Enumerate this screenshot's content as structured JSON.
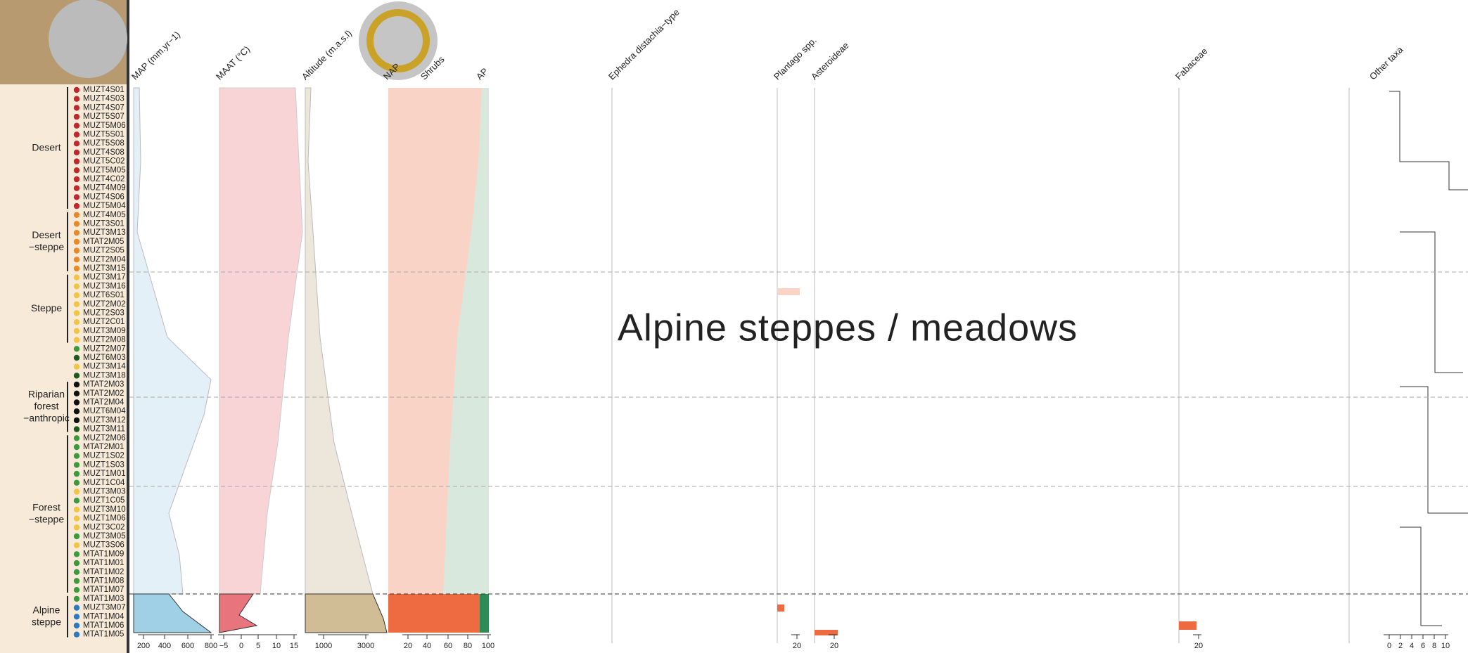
{
  "overlay_title": "Alpine steppes / meadows",
  "groups": [
    {
      "label": [
        "Desert"
      ]
    },
    {
      "label": [
        "Desert",
        "−steppe"
      ]
    },
    {
      "label": [
        "Steppe"
      ]
    },
    {
      "label": [
        "Riparian",
        "forest",
        "−anthropic"
      ]
    },
    {
      "label": [
        "Forest",
        "−steppe"
      ]
    },
    {
      "label": [
        "Alpine",
        "steppe"
      ]
    }
  ],
  "samples": [
    {
      "name": "MUZT4S01",
      "color": "#c0282d"
    },
    {
      "name": "MUZT4S03",
      "color": "#c0282d"
    },
    {
      "name": "MUZT4S07",
      "color": "#c0282d"
    },
    {
      "name": "MUZT5S07",
      "color": "#c0282d"
    },
    {
      "name": "MUZT5M06",
      "color": "#c0282d"
    },
    {
      "name": "MUZT5S01",
      "color": "#c0282d"
    },
    {
      "name": "MUZT5S08",
      "color": "#c0282d"
    },
    {
      "name": "MUZT4S08",
      "color": "#c0282d"
    },
    {
      "name": "MUZT5C02",
      "color": "#c0282d"
    },
    {
      "name": "MUZT5M05",
      "color": "#c0282d"
    },
    {
      "name": "MUZT4C02",
      "color": "#c0282d"
    },
    {
      "name": "MUZT4M09",
      "color": "#c0282d"
    },
    {
      "name": "MUZT4S06",
      "color": "#c0282d"
    },
    {
      "name": "MUZT5M04",
      "color": "#c0282d"
    },
    {
      "name": "MUZT4M05",
      "color": "#e8892a"
    },
    {
      "name": "MUZT3S01",
      "color": "#e8892a"
    },
    {
      "name": "MUZT3M13",
      "color": "#e8892a"
    },
    {
      "name": "MTAT2M05",
      "color": "#e8892a"
    },
    {
      "name": "MUZT2S05",
      "color": "#e8892a"
    },
    {
      "name": "MUZT2M04",
      "color": "#e8892a"
    },
    {
      "name": "MUZT3M15",
      "color": "#e8892a"
    },
    {
      "name": "MUZT3M17",
      "color": "#f2c443"
    },
    {
      "name": "MUZT3M16",
      "color": "#f2c443"
    },
    {
      "name": "MUZT6S01",
      "color": "#f2c443"
    },
    {
      "name": "MUZT2M02",
      "color": "#f2c443"
    },
    {
      "name": "MUZT2S03",
      "color": "#f2c443"
    },
    {
      "name": "MUZT2C01",
      "color": "#f2c443"
    },
    {
      "name": "MUZT3M09",
      "color": "#f2c443"
    },
    {
      "name": "MUZT2M08",
      "color": "#f2c443"
    },
    {
      "name": "MUZT2M07",
      "color": "#3c9a3c"
    },
    {
      "name": "MUZT6M03",
      "color": "#1e5a1e"
    },
    {
      "name": "MUZT3M14",
      "color": "#f2c443"
    },
    {
      "name": "MUZT3M18",
      "color": "#1e5a1e"
    },
    {
      "name": "MTAT2M03",
      "color": "#111111"
    },
    {
      "name": "MTAT2M02",
      "color": "#111111"
    },
    {
      "name": "MTAT2M04",
      "color": "#111111"
    },
    {
      "name": "MUZT6M04",
      "color": "#111111"
    },
    {
      "name": "MUZT3M12",
      "color": "#111111"
    },
    {
      "name": "MUZT3M11",
      "color": "#1e5a1e"
    },
    {
      "name": "MUZT2M06",
      "color": "#3c9a3c"
    },
    {
      "name": "MTAT2M01",
      "color": "#3c9a3c"
    },
    {
      "name": "MUZT1S02",
      "color": "#3c9a3c"
    },
    {
      "name": "MUZT1S03",
      "color": "#3c9a3c"
    },
    {
      "name": "MUZT1M01",
      "color": "#3c9a3c"
    },
    {
      "name": "MUZT1C04",
      "color": "#3c9a3c"
    },
    {
      "name": "MUZT3M03",
      "color": "#f2c443"
    },
    {
      "name": "MUZT1C05",
      "color": "#3c9a3c"
    },
    {
      "name": "MUZT3M10",
      "color": "#f2c443"
    },
    {
      "name": "MUZT1M06",
      "color": "#f2c443"
    },
    {
      "name": "MUZT3C02",
      "color": "#f2c443"
    },
    {
      "name": "MUZT3M05",
      "color": "#3c9a3c"
    },
    {
      "name": "MUZT3S06",
      "color": "#f2c443"
    },
    {
      "name": "MTAT1M09",
      "color": "#3c9a3c"
    },
    {
      "name": "MTAT1M01",
      "color": "#3c9a3c"
    },
    {
      "name": "MTAT1M02",
      "color": "#3c9a3c"
    },
    {
      "name": "MTAT1M08",
      "color": "#3c9a3c"
    },
    {
      "name": "MTAT1M07",
      "color": "#3c9a3c"
    },
    {
      "name": "MTAT1M03",
      "color": "#3c9a3c"
    },
    {
      "name": "MUZT3M07",
      "color": "#2a7bbf"
    },
    {
      "name": "MTAT1M04",
      "color": "#2a7bbf"
    },
    {
      "name": "MTAT1M06",
      "color": "#2a7bbf"
    },
    {
      "name": "MTAT1M05",
      "color": "#2a7bbf"
    }
  ],
  "panels": [
    {
      "label": "MAP (mm.yr−1)",
      "ticks": [
        "200",
        "400",
        "600",
        "800"
      ]
    },
    {
      "label": "MAAT (°C)",
      "ticks": [
        "−5",
        "0",
        "5",
        "10",
        "15"
      ]
    },
    {
      "label": "Altitude (m.a.s.l)",
      "ticks": [
        "1000",
        "3000"
      ]
    },
    {
      "label": "NAP",
      "ticks": []
    },
    {
      "label": "Shrubs",
      "ticks": []
    },
    {
      "label": "AP",
      "ticks": [
        "20",
        "40",
        "60",
        "80",
        "100"
      ]
    },
    {
      "label": "Ephedra distachia−type",
      "ticks": []
    },
    {
      "label": "Plantago spp.",
      "ticks": [
        "20"
      ]
    },
    {
      "label": "Asteroideae",
      "ticks": [
        "20"
      ]
    },
    {
      "label": "Fabaceae",
      "ticks": [
        "20"
      ]
    },
    {
      "label": "Other taxa",
      "ticks": [
        "0",
        "2",
        "4",
        "6",
        "8",
        "10"
      ]
    }
  ]
}
